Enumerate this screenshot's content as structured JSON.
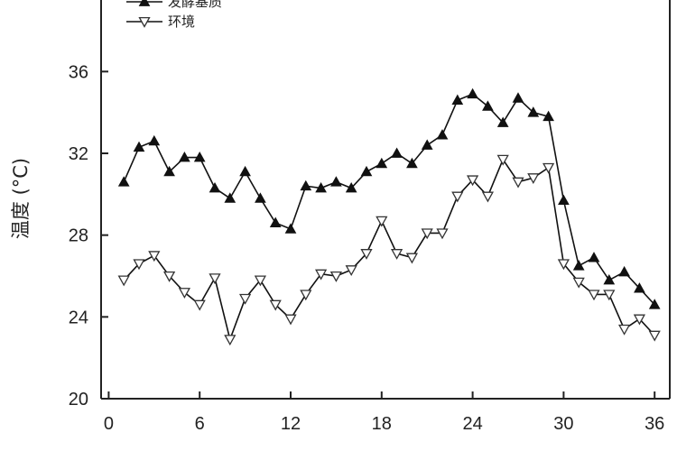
{
  "chart_data": {
    "type": "line",
    "xlabel": "",
    "ylabel": "温度 (°C)",
    "xlim": [
      -0.5,
      37
    ],
    "ylim": [
      20,
      39.5
    ],
    "xticks": [
      0,
      6,
      12,
      18,
      24,
      30,
      36
    ],
    "yticks": [
      20,
      24,
      28,
      32,
      36
    ],
    "grid": false,
    "legend_position": "top-left",
    "x": [
      1,
      2,
      3,
      4,
      5,
      6,
      7,
      8,
      9,
      10,
      11,
      12,
      13,
      14,
      15,
      16,
      17,
      18,
      19,
      20,
      21,
      22,
      23,
      24,
      25,
      26,
      27,
      28,
      29,
      30,
      31,
      32,
      33,
      34,
      35,
      36
    ],
    "series": [
      {
        "name": "发酵基质",
        "marker": "filled-triangle-up",
        "color": "#111111",
        "values": [
          30.6,
          32.3,
          32.6,
          31.1,
          31.8,
          31.8,
          30.3,
          29.8,
          31.1,
          29.8,
          28.6,
          28.3,
          30.4,
          30.3,
          30.6,
          30.3,
          31.1,
          31.5,
          32.0,
          31.5,
          32.4,
          32.9,
          34.6,
          34.9,
          34.3,
          33.5,
          34.7,
          34.0,
          33.8,
          29.7,
          26.5,
          26.9,
          25.8,
          26.2,
          25.4,
          24.6
        ]
      },
      {
        "name": "环境",
        "marker": "open-triangle-down",
        "color": "#111111",
        "values": [
          25.8,
          26.6,
          27.0,
          26.0,
          25.2,
          24.6,
          25.9,
          22.9,
          24.9,
          25.8,
          24.6,
          23.9,
          25.1,
          26.1,
          26.0,
          26.3,
          27.1,
          28.7,
          27.1,
          26.9,
          28.1,
          28.1,
          29.9,
          30.7,
          29.9,
          31.7,
          30.6,
          30.8,
          31.3,
          26.6,
          25.7,
          25.1,
          25.1,
          23.4,
          23.9,
          23.1
        ]
      }
    ]
  }
}
